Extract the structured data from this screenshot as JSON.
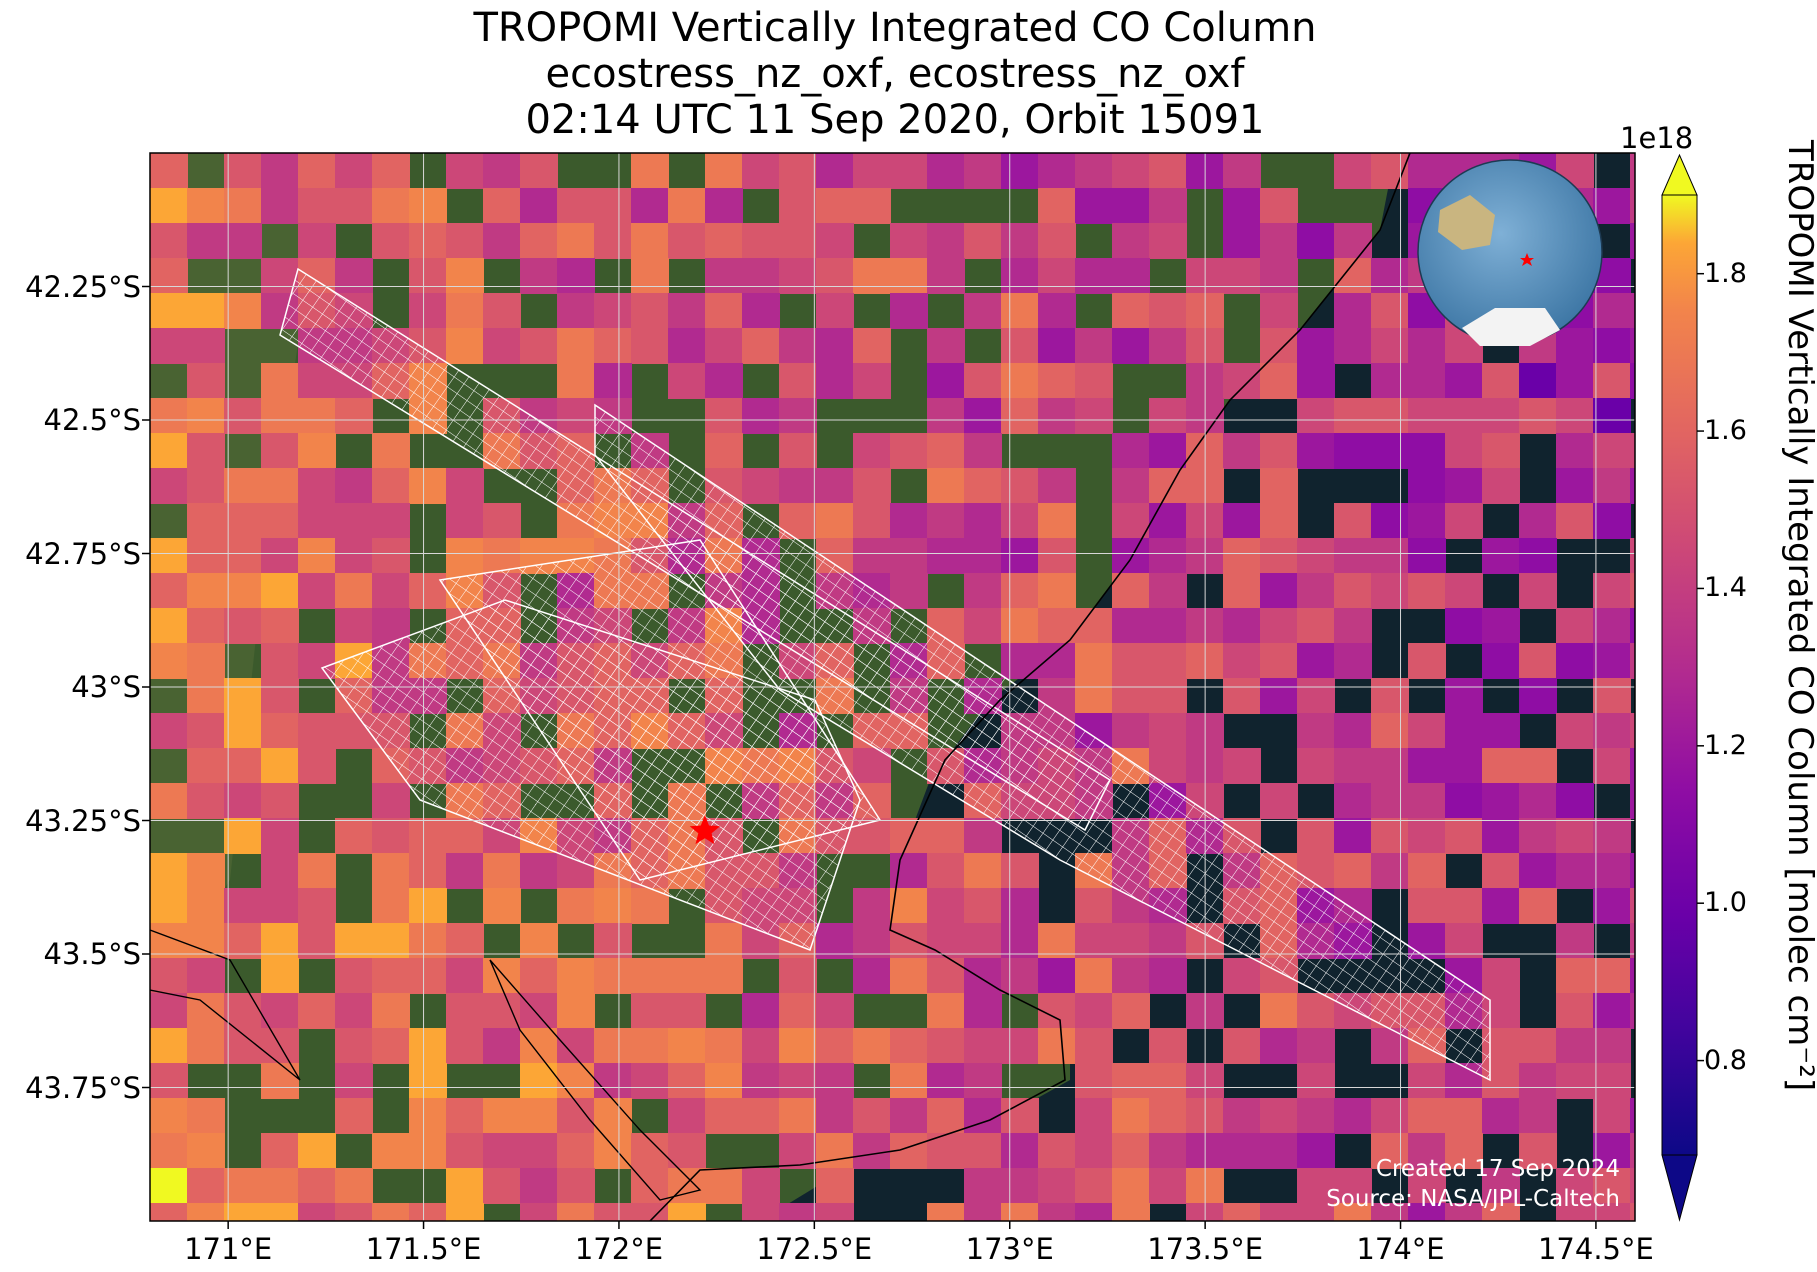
{
  "header": {
    "title_line1": "TROPOMI Vertically Integrated CO Column",
    "title_line2": "ecostress_nz_oxf, ecostress_nz_oxf",
    "title_line3": "02:14 UTC 11 Sep 2020, Orbit 15091"
  },
  "map": {
    "y_ticks": [
      "42.25°S",
      "42.5°S",
      "42.75°S",
      "43°S",
      "43.25°S",
      "43.5°S",
      "43.75°S"
    ],
    "x_ticks": [
      "171°E",
      "171.5°E",
      "172°E",
      "172.5°E",
      "173°E",
      "173.5°E",
      "174°E",
      "174.5°E"
    ],
    "lat_range": [
      42.0,
      44.0
    ],
    "lon_range": [
      170.8,
      174.6
    ],
    "site_marker": {
      "lon": 172.22,
      "lat": 43.27,
      "color": "#ff0000",
      "icon": "star-icon"
    },
    "background": {
      "land": "satellite-imagery",
      "ocean": "#10232e"
    }
  },
  "colorbar": {
    "label": "TROPOMI Vertically Integrated CO Column [molec cm⁻²]",
    "multiplier": "1e18",
    "ticks": [
      "0.8",
      "1.0",
      "1.2",
      "1.4",
      "1.6",
      "1.8"
    ],
    "range": [
      0.68,
      1.9
    ],
    "colormap": "plasma",
    "extend": "both"
  },
  "inset": {
    "icon": "globe-icon",
    "marker_color": "#ff0000"
  },
  "credits": {
    "created": "Created 17 Sep 2024",
    "source": "Source: NASA/JPL-Caltech"
  }
}
